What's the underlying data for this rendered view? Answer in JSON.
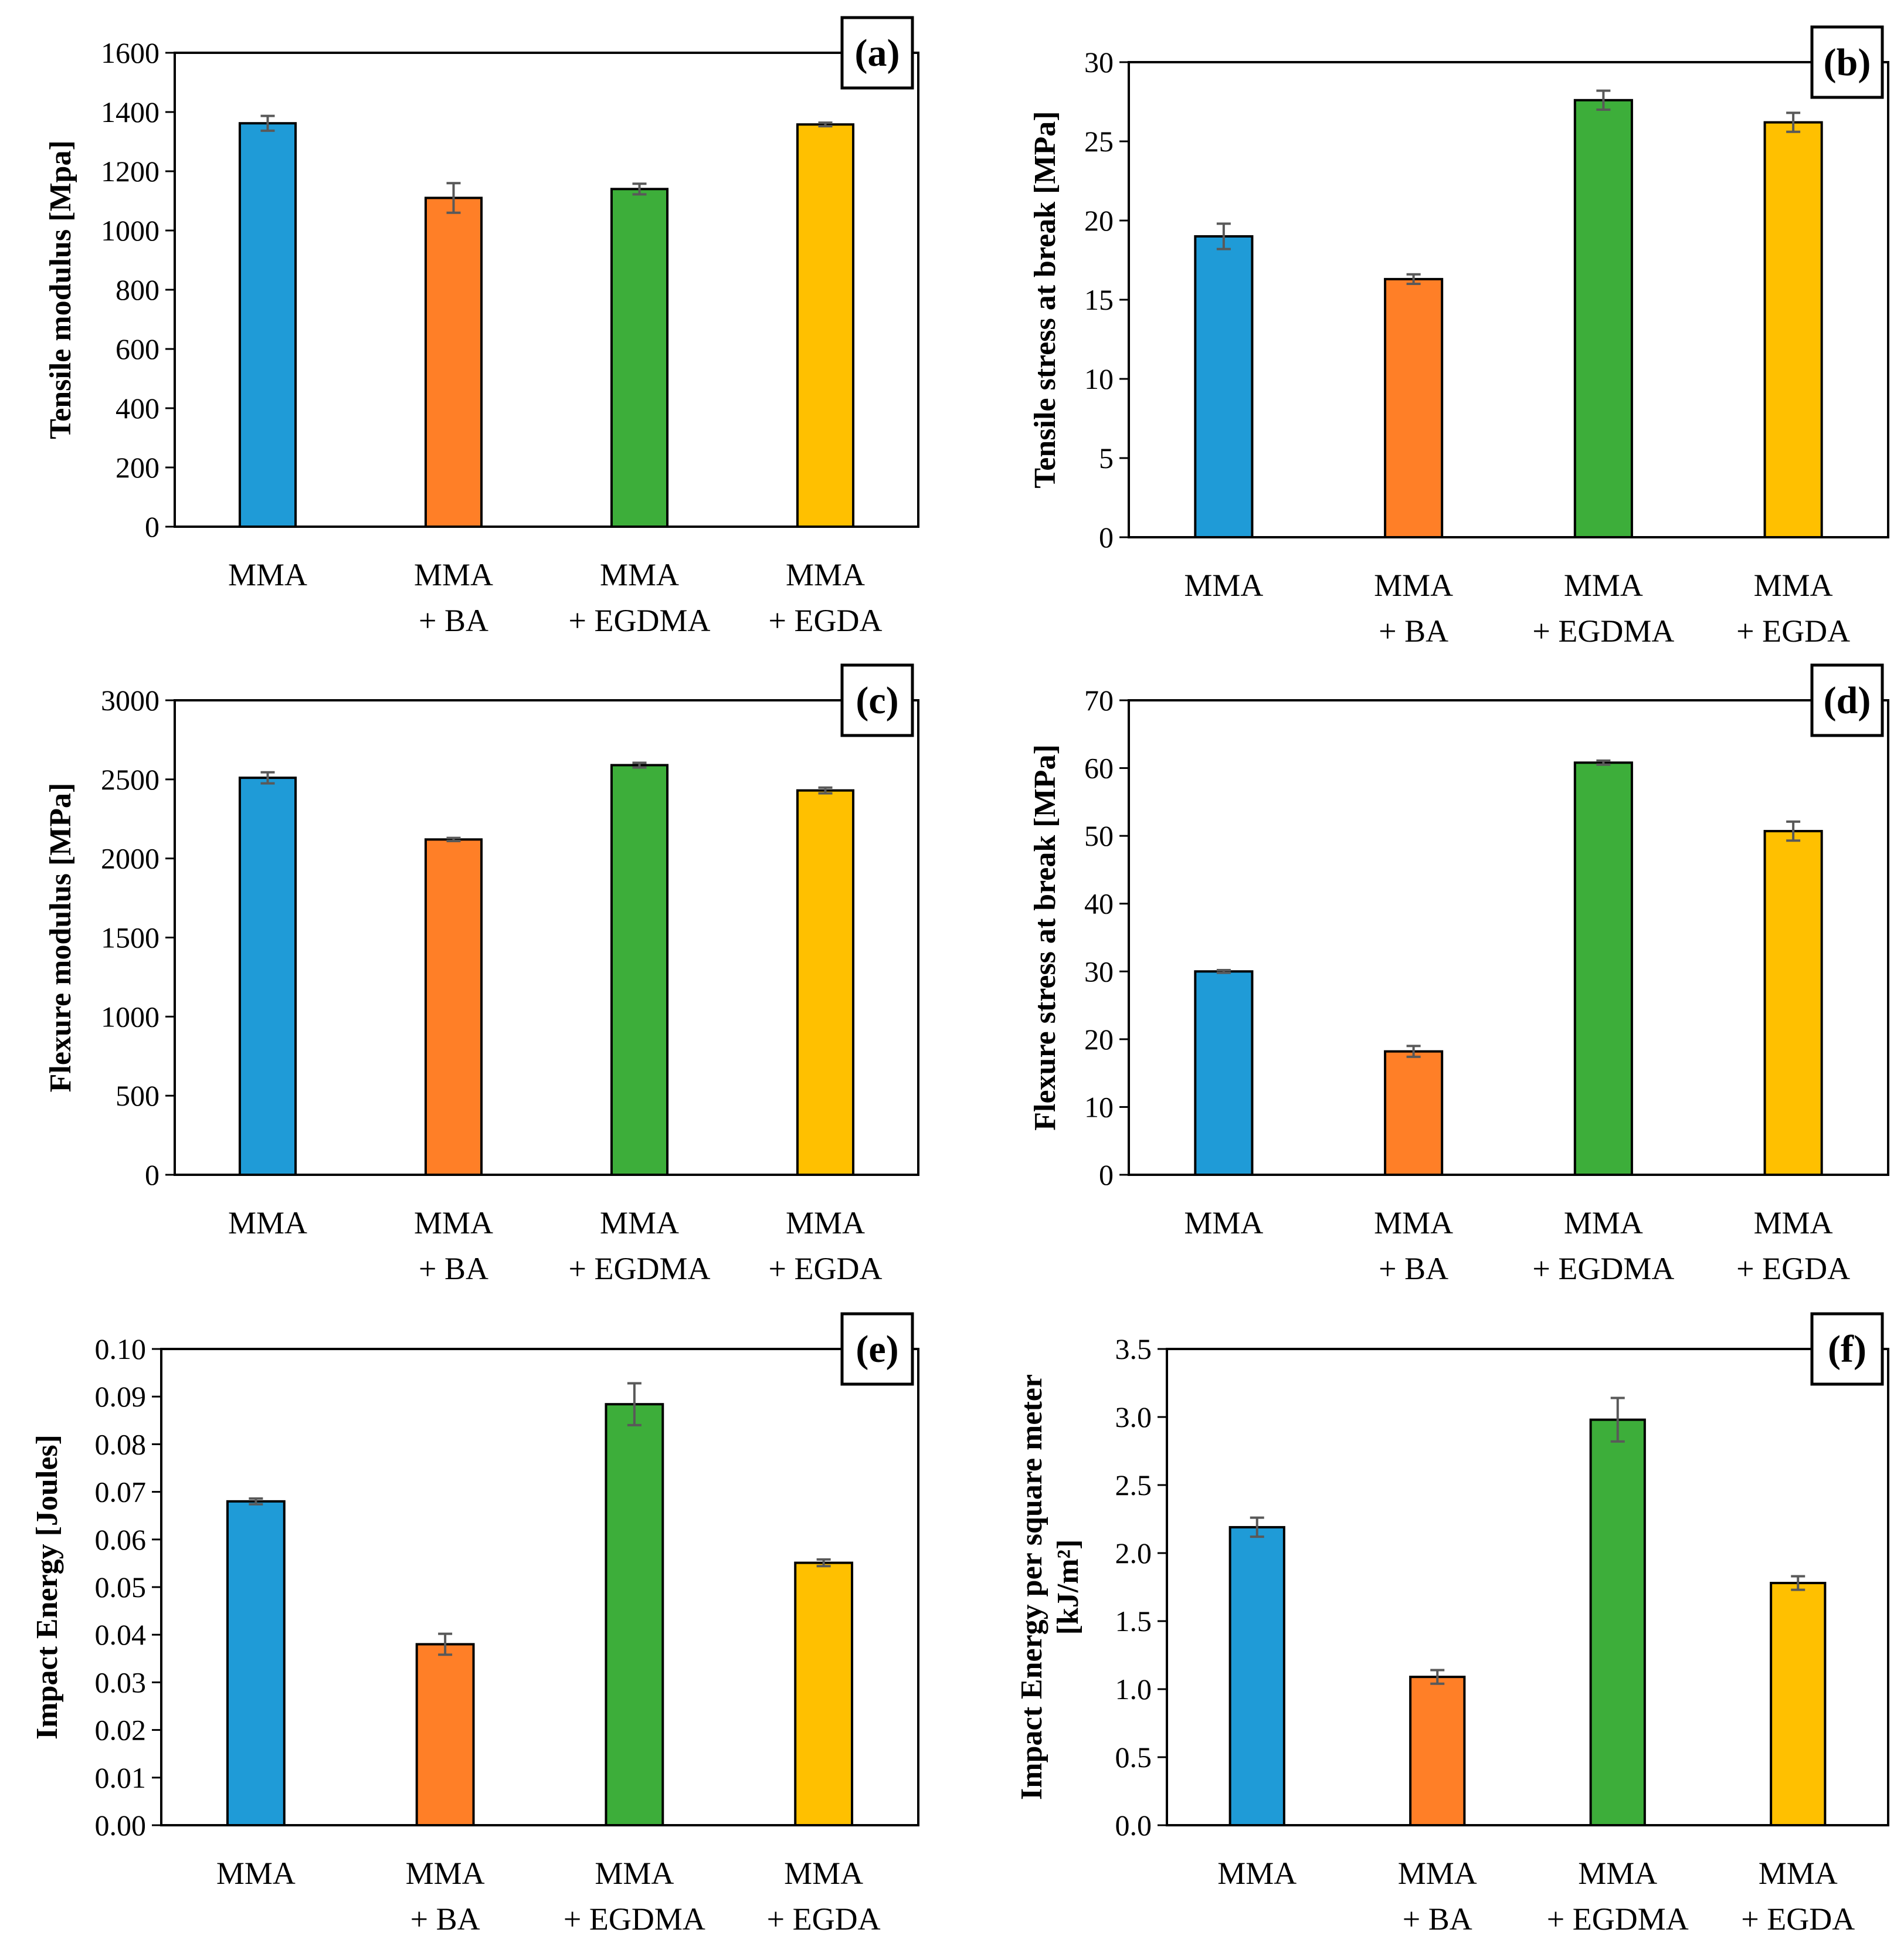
{
  "figure_title": "",
  "colors": {
    "MMA": "#1f9bd7",
    "MMA + BA": "#ff7f27",
    "MMA + EGDMA": "#3dae3a",
    "MMA + EGDA": "#ffc000"
  },
  "chart_data": [
    {
      "panel": "(a)",
      "type": "bar",
      "categories": [
        [
          "MMA"
        ],
        [
          "MMA",
          "+ BA"
        ],
        [
          "MMA",
          "+ EGDMA"
        ],
        [
          "MMA",
          "+ EGDA"
        ]
      ],
      "values": [
        1362,
        1110,
        1140,
        1358
      ],
      "errors": [
        25,
        50,
        18,
        6
      ],
      "ylabel": [
        "Tensile  modulus [Mpa]"
      ],
      "ylim": [
        0,
        1600
      ],
      "yticks": [
        "0",
        "200",
        "400",
        "600",
        "800",
        "1000",
        "1200",
        "1400",
        "1600"
      ]
    },
    {
      "panel": "(b)",
      "type": "bar",
      "categories": [
        [
          "MMA"
        ],
        [
          "MMA",
          "+ BA"
        ],
        [
          "MMA",
          "+ EGDMA"
        ],
        [
          "MMA",
          "+ EGDA"
        ]
      ],
      "values": [
        19.0,
        16.3,
        27.6,
        26.2
      ],
      "errors": [
        0.8,
        0.3,
        0.6,
        0.6
      ],
      "ylabel": [
        "Tensile  stress at break [MPa]"
      ],
      "ylim": [
        0,
        30
      ],
      "yticks": [
        "0",
        "5",
        "10",
        "15",
        "20",
        "25",
        "30"
      ]
    },
    {
      "panel": "(c)",
      "type": "bar",
      "categories": [
        [
          "MMA"
        ],
        [
          "MMA",
          "+ BA"
        ],
        [
          "MMA",
          "+ EGDMA"
        ],
        [
          "MMA",
          "+ EGDA"
        ]
      ],
      "values": [
        2510,
        2120,
        2590,
        2430
      ],
      "errors": [
        35,
        10,
        15,
        18
      ],
      "ylabel": [
        "Flexure modulus [MPa]"
      ],
      "ylim": [
        0,
        3000
      ],
      "yticks": [
        "0",
        "500",
        "1000",
        "1500",
        "2000",
        "2500",
        "3000"
      ]
    },
    {
      "panel": "(d)",
      "type": "bar",
      "categories": [
        [
          "MMA"
        ],
        [
          "MMA",
          "+ BA"
        ],
        [
          "MMA",
          "+ EGDMA"
        ],
        [
          "MMA",
          "+ EGDA"
        ]
      ],
      "values": [
        30.0,
        18.2,
        60.8,
        50.7
      ],
      "errors": [
        0.2,
        0.8,
        0.3,
        1.4
      ],
      "ylabel": [
        "Flexure stress at break [MPa]"
      ],
      "ylim": [
        0,
        70
      ],
      "yticks": [
        "0",
        "10",
        "20",
        "30",
        "40",
        "50",
        "60",
        "70"
      ]
    },
    {
      "panel": "(e)",
      "type": "bar",
      "categories": [
        [
          "MMA"
        ],
        [
          "MMA",
          "+ BA"
        ],
        [
          "MMA",
          "+ EGDMA"
        ],
        [
          "MMA",
          "+ EGDA"
        ]
      ],
      "values": [
        0.068,
        0.038,
        0.0884,
        0.0551
      ],
      "errors": [
        0.0006,
        0.0022,
        0.0044,
        0.0007
      ],
      "ylabel": [
        "Impact Energy  [Joules]"
      ],
      "ylim": [
        0,
        0.1
      ],
      "yticks": [
        "0.00",
        "0.01",
        "0.02",
        "0.03",
        "0.04",
        "0.05",
        "0.06",
        "0.07",
        "0.08",
        "0.09",
        "0.10"
      ]
    },
    {
      "panel": "(f)",
      "type": "bar",
      "categories": [
        [
          "MMA"
        ],
        [
          "MMA",
          "+ BA"
        ],
        [
          "MMA",
          "+ EGDMA"
        ],
        [
          "MMA",
          "+ EGDA"
        ]
      ],
      "values": [
        2.19,
        1.09,
        2.98,
        1.78
      ],
      "errors": [
        0.07,
        0.05,
        0.16,
        0.05
      ],
      "ylabel": [
        "Impact Energy per square meter",
        "[kJ/m²]"
      ],
      "ylim": [
        0,
        3.5
      ],
      "yticks": [
        "0.0",
        "0.5",
        "1.0",
        "1.5",
        "2.0",
        "2.5",
        "3.0",
        "3.5"
      ]
    }
  ]
}
